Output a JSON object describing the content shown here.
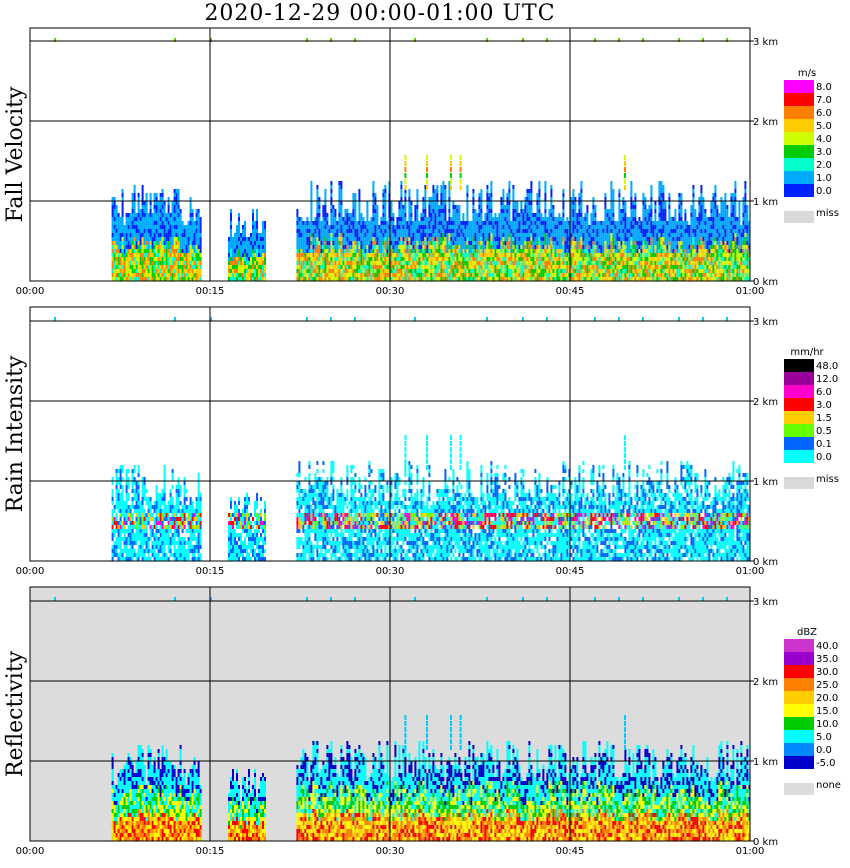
{
  "title": "2020-12-29   00:00-01:00 UTC",
  "x_ticks": [
    "00:00",
    "00:15",
    "00:30",
    "00:45",
    "01:00"
  ],
  "y_ticks": [
    "0 km",
    "1 km",
    "2 km",
    "3 km"
  ],
  "chart_data": [
    {
      "type": "heatmap",
      "ylabel": "Fall Velocity",
      "xlim": [
        "00:00",
        "01:00"
      ],
      "ylim_km": [
        0,
        3
      ],
      "background": "#ffffff",
      "legend": {
        "unit": "m/s",
        "labels": [
          "8.0",
          "7.0",
          "6.0",
          "5.0",
          "4.0",
          "3.0",
          "2.0",
          "1.0",
          "0.0"
        ],
        "colors": [
          "#ff00ff",
          "#ff0000",
          "#ff8000",
          "#ffcc00",
          "#ccff00",
          "#00cc00",
          "#00ffcc",
          "#00aaff",
          "#0022ff"
        ],
        "missing_label": "miss",
        "missing_color": "#d9d9d9"
      },
      "rain_spans": [
        {
          "start_min": 6.8,
          "end_min": 14.2,
          "base_km": 0.0,
          "top_km": 0.95
        },
        {
          "start_min": 16.5,
          "end_min": 19.6,
          "base_km": 0.0,
          "top_km": 0.85
        },
        {
          "start_min": 22.2,
          "end_min": 60.0,
          "base_km": 0.0,
          "top_km": 1.05
        }
      ]
    },
    {
      "type": "heatmap",
      "ylabel": "Rain Intensity",
      "xlim": [
        "00:00",
        "01:00"
      ],
      "ylim_km": [
        0,
        3
      ],
      "background": "#ffffff",
      "legend": {
        "unit": "mm/hr",
        "labels": [
          "48.0",
          "12.0",
          "6.0",
          "3.0",
          "1.5",
          "0.5",
          "0.1",
          "0.0"
        ],
        "colors": [
          "#000000",
          "#990099",
          "#ff00cc",
          "#ff0000",
          "#ffcc00",
          "#66ff00",
          "#0066ff",
          "#00ffff"
        ],
        "missing_label": "miss",
        "missing_color": "#d9d9d9"
      }
    },
    {
      "type": "heatmap",
      "ylabel": "Reflectivity",
      "xlim": [
        "00:00",
        "01:00"
      ],
      "ylim_km": [
        0,
        3
      ],
      "background": "#dcdcdc",
      "legend": {
        "unit": "dBZ",
        "labels": [
          "40.0",
          "35.0",
          "30.0",
          "25.0",
          "20.0",
          "15.0",
          "10.0",
          "5.0",
          "0.0",
          "-5.0"
        ],
        "colors": [
          "#cc33cc",
          "#9900cc",
          "#ff0000",
          "#ff8000",
          "#ffcc00",
          "#ffff00",
          "#00cc00",
          "#00ffff",
          "#0088ff",
          "#0000cc"
        ],
        "missing_label": "none",
        "missing_color": "#dcdcdc"
      }
    }
  ]
}
